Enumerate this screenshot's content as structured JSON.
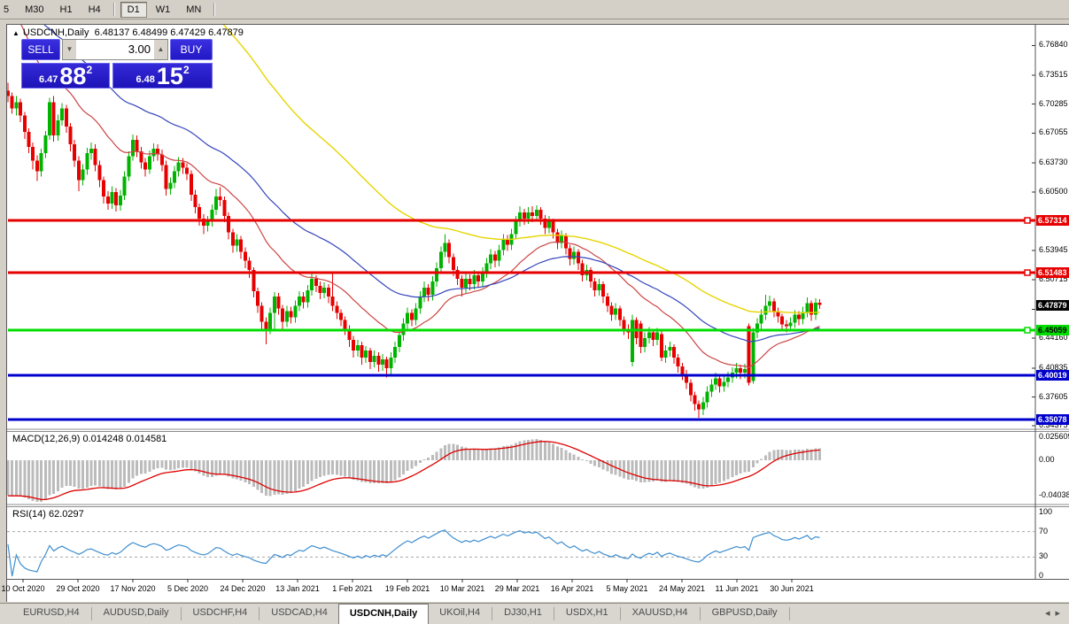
{
  "toolbar": {
    "timeframes": [
      "5",
      "M30",
      "H1",
      "H4",
      "D1",
      "W1",
      "MN"
    ],
    "active_timeframe": "D1"
  },
  "chart": {
    "title": {
      "arrow": "▲",
      "symbol": "USDCNH,Daily",
      "quotes": "6.48137 6.48499 6.47429 6.47879"
    }
  },
  "trade_panel": {
    "sell_label": "SELL",
    "buy_label": "BUY",
    "volume": "3.00",
    "spin_down": "▼",
    "spin_up": "▲",
    "sell_price_small": "6.47",
    "sell_price_big": "88",
    "sell_price_sup": "2",
    "buy_price_small": "6.48",
    "buy_price_big": "15",
    "buy_price_sup": "2"
  },
  "tabs": {
    "items": [
      {
        "label": "EURUSD,H4",
        "active": false
      },
      {
        "label": "AUDUSD,Daily",
        "active": false
      },
      {
        "label": "USDCHF,H4",
        "active": false
      },
      {
        "label": "USDCAD,H4",
        "active": false
      },
      {
        "label": "USDCNH,Daily",
        "active": true
      },
      {
        "label": "UKOil,H4",
        "active": false
      },
      {
        "label": "DJ30,H1",
        "active": false
      },
      {
        "label": "USDX,H1",
        "active": false
      },
      {
        "label": "XAUUSD,H4",
        "active": false
      },
      {
        "label": "GBPUSD,Daily",
        "active": false
      }
    ],
    "scroll_left": "◂",
    "scroll_right": "▸"
  },
  "chart_data": {
    "type": "candlestick",
    "symbol": "USDCNH",
    "timeframe": "Daily",
    "price_range": {
      "top": 6.7905,
      "bottom": 6.341
    },
    "y_axis_ticks": [
      "6.76840",
      "6.73515",
      "6.70285",
      "6.67055",
      "6.63730",
      "6.60500",
      "6.53945",
      "6.50715",
      "6.47390",
      "6.44160",
      "6.40835",
      "6.37605",
      "6.34375"
    ],
    "x_axis_dates": [
      "10 Oct 2020",
      "29 Oct 2020",
      "17 Nov 2020",
      "5 Dec 2020",
      "24 Dec 2020",
      "13 Jan 2021",
      "1 Feb 2021",
      "19 Feb 2021",
      "10 Mar 2021",
      "29 Mar 2021",
      "16 Apr 2021",
      "5 May 2021",
      "24 May 2021",
      "11 Jun 2021",
      "30 Jun 2021"
    ],
    "bull_color": "#00b300",
    "bear_color": "#e60000",
    "current_price": {
      "value": "6.47879",
      "price": 6.47879,
      "bg": "#000000",
      "fg": "#ffffff"
    },
    "horizontal_lines": [
      {
        "price": 6.57314,
        "label": "6.57314",
        "color": "#e60000",
        "label_bg": "#e60000",
        "label_fg": "#ffffff",
        "marker": true
      },
      {
        "price": 6.51483,
        "label": "6.51483",
        "color": "#e60000",
        "label_bg": "#e60000",
        "label_fg": "#ffffff",
        "marker": true
      },
      {
        "price": 6.45059,
        "label": "6.45059",
        "color": "#00dd00",
        "label_bg": "#00dd00",
        "label_fg": "#000000",
        "marker": true
      },
      {
        "price": 6.40019,
        "label": "6.40019",
        "color": "#0000cc",
        "label_bg": "#0000cc",
        "label_fg": "#ffffff",
        "marker": false
      },
      {
        "price": 6.35078,
        "label": "6.35078",
        "color": "#0000cc",
        "label_bg": "#0000cc",
        "label_fg": "#ffffff",
        "marker": false
      }
    ],
    "moving_averages": [
      {
        "period": 24,
        "seed": 6.83,
        "color": "#cc4444",
        "width": 1.2
      },
      {
        "period": 50,
        "seed": 6.85,
        "color": "#3344bb",
        "width": 1.2
      },
      {
        "period": 85,
        "seed": 7.2,
        "color": "#e6d500",
        "width": 1.4
      }
    ],
    "macd": {
      "label": "MACD(12,26,9)",
      "values": "0.014248 0.014581",
      "fast": 12,
      "slow": 26,
      "signal": 9,
      "axis_labels": [
        {
          "text": "0.025609",
          "value": 0.025609
        },
        {
          "text": "0.00",
          "value": 0.0
        },
        {
          "text": "-0.040386",
          "value": -0.040386
        }
      ],
      "bar_color": "#bbbbbb",
      "line_color": "#dd0000"
    },
    "rsi": {
      "label": "RSI(14)",
      "value": "62.0297",
      "period": 14,
      "levels": [
        {
          "text": "100",
          "value": 100
        },
        {
          "text": "70",
          "value": 70,
          "dashed": true
        },
        {
          "text": "30",
          "value": 30,
          "dashed": true
        },
        {
          "text": "0",
          "value": 0
        }
      ],
      "line_color": "#3e8ed0"
    },
    "candles": [
      [
        6.718,
        6.727,
        6.705,
        6.712
      ],
      [
        6.712,
        6.716,
        6.692,
        6.698
      ],
      [
        6.698,
        6.712,
        6.69,
        6.705
      ],
      [
        6.705,
        6.709,
        6.683,
        6.69
      ],
      [
        6.69,
        6.694,
        6.664,
        6.672
      ],
      [
        6.672,
        6.676,
        6.648,
        6.655
      ],
      [
        6.655,
        6.66,
        6.63,
        6.64
      ],
      [
        6.64,
        6.646,
        6.617,
        6.628
      ],
      [
        6.628,
        6.653,
        6.622,
        6.648
      ],
      [
        6.648,
        6.673,
        6.643,
        6.668
      ],
      [
        6.668,
        6.71,
        6.663,
        6.705
      ],
      [
        6.705,
        6.712,
        6.661,
        6.668
      ],
      [
        6.668,
        6.691,
        6.662,
        6.685
      ],
      [
        6.685,
        6.704,
        6.679,
        6.698
      ],
      [
        6.698,
        6.702,
        6.671,
        6.678
      ],
      [
        6.678,
        6.682,
        6.65,
        6.658
      ],
      [
        6.658,
        6.663,
        6.633,
        6.64
      ],
      [
        6.64,
        6.645,
        6.606,
        6.618
      ],
      [
        6.618,
        6.636,
        6.612,
        6.63
      ],
      [
        6.63,
        6.654,
        6.624,
        6.648
      ],
      [
        6.648,
        6.66,
        6.641,
        6.653
      ],
      [
        6.653,
        6.658,
        6.628,
        6.635
      ],
      [
        6.635,
        6.64,
        6.61,
        6.618
      ],
      [
        6.618,
        6.622,
        6.592,
        6.6
      ],
      [
        6.6,
        6.606,
        6.585,
        6.592
      ],
      [
        6.592,
        6.611,
        6.586,
        6.605
      ],
      [
        6.605,
        6.609,
        6.583,
        6.59
      ],
      [
        6.59,
        6.607,
        6.584,
        6.601
      ],
      [
        6.601,
        6.628,
        6.596,
        6.622
      ],
      [
        6.622,
        6.65,
        6.617,
        6.645
      ],
      [
        6.645,
        6.669,
        6.64,
        6.663
      ],
      [
        6.663,
        6.668,
        6.644,
        6.65
      ],
      [
        6.65,
        6.655,
        6.631,
        6.638
      ],
      [
        6.638,
        6.643,
        6.622,
        6.63
      ],
      [
        6.63,
        6.651,
        6.625,
        6.645
      ],
      [
        6.645,
        6.659,
        6.639,
        6.653
      ],
      [
        6.653,
        6.658,
        6.64,
        6.647
      ],
      [
        6.647,
        6.652,
        6.628,
        6.635
      ],
      [
        6.635,
        6.64,
        6.601,
        6.608
      ],
      [
        6.608,
        6.621,
        6.602,
        6.615
      ],
      [
        6.615,
        6.634,
        6.609,
        6.628
      ],
      [
        6.628,
        6.644,
        6.622,
        6.638
      ],
      [
        6.638,
        6.643,
        6.625,
        6.632
      ],
      [
        6.632,
        6.637,
        6.618,
        6.625
      ],
      [
        6.625,
        6.629,
        6.595,
        6.602
      ],
      [
        6.602,
        6.607,
        6.581,
        6.588
      ],
      [
        6.588,
        6.592,
        6.567,
        6.575
      ],
      [
        6.575,
        6.58,
        6.558,
        6.567
      ],
      [
        6.567,
        6.578,
        6.561,
        6.572
      ],
      [
        6.572,
        6.591,
        6.566,
        6.585
      ],
      [
        6.585,
        6.608,
        6.579,
        6.6
      ],
      [
        6.6,
        6.61,
        6.589,
        6.596
      ],
      [
        6.596,
        6.6,
        6.571,
        6.578
      ],
      [
        6.578,
        6.582,
        6.552,
        6.56
      ],
      [
        6.56,
        6.564,
        6.537,
        6.545
      ],
      [
        6.545,
        6.558,
        6.538,
        6.552
      ],
      [
        6.552,
        6.556,
        6.53,
        6.538
      ],
      [
        6.538,
        6.543,
        6.52,
        6.528
      ],
      [
        6.528,
        6.532,
        6.509,
        6.518
      ],
      [
        6.518,
        6.521,
        6.487,
        6.494
      ],
      [
        6.494,
        6.498,
        6.47,
        6.478
      ],
      [
        6.478,
        6.482,
        6.451,
        6.46
      ],
      [
        6.46,
        6.465,
        6.435,
        6.452
      ],
      [
        6.452,
        6.476,
        6.446,
        6.47
      ],
      [
        6.47,
        6.493,
        6.452,
        6.488
      ],
      [
        6.488,
        6.492,
        6.468,
        6.475
      ],
      [
        6.475,
        6.479,
        6.452,
        6.46
      ],
      [
        6.46,
        6.478,
        6.454,
        6.472
      ],
      [
        6.472,
        6.477,
        6.458,
        6.465
      ],
      [
        6.465,
        6.484,
        6.459,
        6.478
      ],
      [
        6.478,
        6.494,
        6.472,
        6.488
      ],
      [
        6.488,
        6.493,
        6.475,
        6.482
      ],
      [
        6.482,
        6.501,
        6.476,
        6.495
      ],
      [
        6.495,
        6.514,
        6.489,
        6.508
      ],
      [
        6.508,
        6.512,
        6.493,
        6.5
      ],
      [
        6.5,
        6.505,
        6.485,
        6.492
      ],
      [
        6.492,
        6.504,
        6.486,
        6.498
      ],
      [
        6.498,
        6.502,
        6.481,
        6.488
      ],
      [
        6.488,
        6.515,
        6.472,
        6.478
      ],
      [
        6.478,
        6.483,
        6.463,
        6.47
      ],
      [
        6.47,
        6.474,
        6.455,
        6.462
      ],
      [
        6.462,
        6.466,
        6.445,
        6.452
      ],
      [
        6.452,
        6.456,
        6.432,
        6.44
      ],
      [
        6.44,
        6.444,
        6.42,
        6.428
      ],
      [
        6.428,
        6.44,
        6.421,
        6.434
      ],
      [
        6.434,
        6.438,
        6.412,
        6.42
      ],
      [
        6.42,
        6.433,
        6.414,
        6.428
      ],
      [
        6.428,
        6.431,
        6.407,
        6.415
      ],
      [
        6.415,
        6.428,
        6.409,
        6.422
      ],
      [
        6.422,
        6.426,
        6.404,
        6.412
      ],
      [
        6.412,
        6.424,
        6.405,
        6.418
      ],
      [
        6.418,
        6.421,
        6.398,
        6.408
      ],
      [
        6.408,
        6.426,
        6.402,
        6.42
      ],
      [
        6.42,
        6.438,
        6.414,
        6.432
      ],
      [
        6.432,
        6.451,
        6.426,
        6.445
      ],
      [
        6.445,
        6.464,
        6.439,
        6.458
      ],
      [
        6.458,
        6.476,
        6.452,
        6.47
      ],
      [
        6.47,
        6.474,
        6.455,
        6.462
      ],
      [
        6.462,
        6.481,
        6.456,
        6.475
      ],
      [
        6.475,
        6.494,
        6.469,
        6.488
      ],
      [
        6.488,
        6.505,
        6.482,
        6.498
      ],
      [
        6.498,
        6.502,
        6.483,
        6.49
      ],
      [
        6.49,
        6.511,
        6.484,
        6.505
      ],
      [
        6.505,
        6.526,
        6.499,
        6.52
      ],
      [
        6.52,
        6.544,
        6.514,
        6.538
      ],
      [
        6.538,
        6.558,
        6.532,
        6.548
      ],
      [
        6.548,
        6.552,
        6.525,
        6.532
      ],
      [
        6.532,
        6.536,
        6.511,
        6.518
      ],
      [
        6.518,
        6.522,
        6.501,
        6.508
      ],
      [
        6.508,
        6.512,
        6.488,
        6.498
      ],
      [
        6.498,
        6.514,
        6.492,
        6.508
      ],
      [
        6.508,
        6.513,
        6.495,
        6.502
      ],
      [
        6.502,
        6.518,
        6.496,
        6.512
      ],
      [
        6.512,
        6.516,
        6.498,
        6.505
      ],
      [
        6.505,
        6.521,
        6.499,
        6.515
      ],
      [
        6.515,
        6.531,
        6.509,
        6.525
      ],
      [
        6.525,
        6.541,
        6.519,
        6.535
      ],
      [
        6.535,
        6.539,
        6.521,
        6.528
      ],
      [
        6.528,
        6.546,
        6.522,
        6.54
      ],
      [
        6.54,
        6.558,
        6.534,
        6.552
      ],
      [
        6.552,
        6.557,
        6.539,
        6.546
      ],
      [
        6.546,
        6.564,
        6.54,
        6.558
      ],
      [
        6.558,
        6.578,
        6.552,
        6.572
      ],
      [
        6.572,
        6.589,
        6.566,
        6.582
      ],
      [
        6.582,
        6.586,
        6.568,
        6.575
      ],
      [
        6.575,
        6.588,
        6.569,
        6.582
      ],
      [
        6.582,
        6.589,
        6.571,
        6.578
      ],
      [
        6.578,
        6.59,
        6.572,
        6.585
      ],
      [
        6.585,
        6.588,
        6.568,
        6.575
      ],
      [
        6.575,
        6.579,
        6.558,
        6.565
      ],
      [
        6.565,
        6.578,
        6.559,
        6.572
      ],
      [
        6.572,
        6.575,
        6.553,
        6.56
      ],
      [
        6.56,
        6.564,
        6.541,
        6.548
      ],
      [
        6.548,
        6.562,
        6.542,
        6.556
      ],
      [
        6.556,
        6.559,
        6.535,
        6.542
      ],
      [
        6.542,
        6.546,
        6.523,
        6.53
      ],
      [
        6.53,
        6.544,
        6.524,
        6.538
      ],
      [
        6.538,
        6.541,
        6.518,
        6.525
      ],
      [
        6.525,
        6.529,
        6.505,
        6.512
      ],
      [
        6.512,
        6.524,
        6.506,
        6.518
      ],
      [
        6.518,
        6.521,
        6.498,
        6.505
      ],
      [
        6.505,
        6.509,
        6.488,
        6.495
      ],
      [
        6.495,
        6.508,
        6.489,
        6.502
      ],
      [
        6.502,
        6.505,
        6.481,
        6.488
      ],
      [
        6.488,
        6.492,
        6.471,
        6.478
      ],
      [
        6.478,
        6.482,
        6.461,
        6.468
      ],
      [
        6.468,
        6.481,
        6.462,
        6.475
      ],
      [
        6.475,
        6.478,
        6.455,
        6.462
      ],
      [
        6.462,
        6.466,
        6.445,
        6.452
      ],
      [
        6.452,
        6.457,
        6.441,
        6.448
      ],
      [
        6.415,
        6.468,
        6.41,
        6.462
      ],
      [
        6.462,
        6.465,
        6.435,
        6.442
      ],
      [
        6.458,
        6.461,
        6.425,
        6.432
      ],
      [
        6.432,
        6.448,
        6.426,
        6.442
      ],
      [
        6.442,
        6.454,
        6.436,
        6.448
      ],
      [
        6.448,
        6.452,
        6.433,
        6.44
      ],
      [
        6.44,
        6.453,
        6.434,
        6.448
      ],
      [
        6.446,
        6.449,
        6.416,
        6.42
      ],
      [
        6.42,
        6.434,
        6.414,
        6.428
      ],
      [
        6.428,
        6.438,
        6.421,
        6.432
      ],
      [
        6.432,
        6.435,
        6.413,
        6.42
      ],
      [
        6.42,
        6.424,
        6.403,
        6.41
      ],
      [
        6.41,
        6.414,
        6.395,
        6.402
      ],
      [
        6.402,
        6.406,
        6.385,
        6.392
      ],
      [
        6.392,
        6.396,
        6.371,
        6.378
      ],
      [
        6.378,
        6.382,
        6.361,
        6.368
      ],
      [
        6.368,
        6.372,
        6.353,
        6.362
      ],
      [
        6.362,
        6.376,
        6.356,
        6.37
      ],
      [
        6.37,
        6.388,
        6.364,
        6.382
      ],
      [
        6.382,
        6.396,
        6.376,
        6.39
      ],
      [
        6.39,
        6.403,
        6.384,
        6.397
      ],
      [
        6.397,
        6.401,
        6.381,
        6.388
      ],
      [
        6.388,
        6.399,
        6.382,
        6.393
      ],
      [
        6.393,
        6.404,
        6.387,
        6.398
      ],
      [
        6.398,
        6.409,
        6.392,
        6.403
      ],
      [
        6.403,
        6.414,
        6.397,
        6.408
      ],
      [
        6.408,
        6.412,
        6.396,
        6.403
      ],
      [
        6.403,
        6.413,
        6.397,
        6.407
      ],
      [
        6.455,
        6.458,
        6.389,
        6.392
      ],
      [
        6.394,
        6.453,
        6.391,
        6.448
      ],
      [
        6.448,
        6.464,
        6.442,
        6.458
      ],
      [
        6.458,
        6.474,
        6.452,
        6.468
      ],
      [
        6.468,
        6.49,
        6.462,
        6.478
      ],
      [
        6.478,
        6.489,
        6.471,
        6.483
      ],
      [
        6.483,
        6.486,
        6.465,
        6.472
      ],
      [
        6.472,
        6.476,
        6.459,
        6.466
      ],
      [
        6.466,
        6.469,
        6.45,
        6.457
      ],
      [
        6.457,
        6.462,
        6.448,
        6.455
      ],
      [
        6.455,
        6.465,
        6.45,
        6.459
      ],
      [
        6.459,
        6.473,
        6.453,
        6.468
      ],
      [
        6.468,
        6.472,
        6.456,
        6.463
      ],
      [
        6.463,
        6.477,
        6.457,
        6.471
      ],
      [
        6.471,
        6.487,
        6.465,
        6.481
      ],
      [
        6.481,
        6.484,
        6.461,
        6.468
      ],
      [
        6.468,
        6.486,
        6.462,
        6.4814
      ],
      [
        6.4814,
        6.485,
        6.4743,
        6.4788
      ]
    ]
  }
}
